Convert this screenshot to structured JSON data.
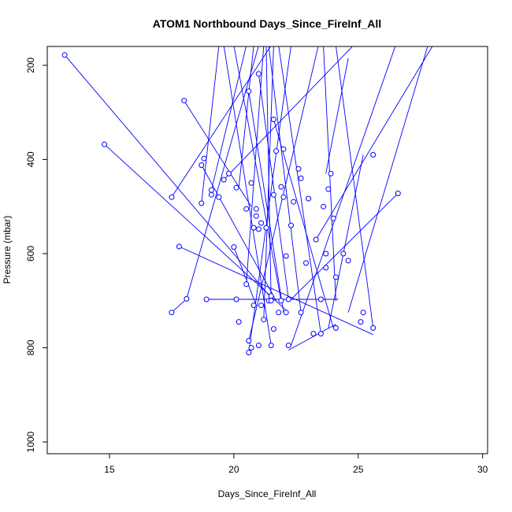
{
  "chart_data": {
    "type": "line",
    "title": "ATOM1 Northbound Days_Since_FireInf_All",
    "xlabel": "Days_Since_FireInf_All",
    "ylabel": "Pressure (mbar)",
    "xlim": [
      12.5,
      30.2
    ],
    "ylim": [
      1025,
      160
    ],
    "y_reversed": true,
    "x_ticks": [
      15,
      20,
      25,
      30
    ],
    "y_ticks": [
      200,
      400,
      600,
      800,
      1000
    ],
    "x_tick_labels": [
      "15",
      "20",
      "25",
      "30"
    ],
    "y_tick_labels": [
      "200",
      "400",
      "600",
      "800",
      "1000"
    ],
    "grid": false,
    "legend": "none",
    "colors": {
      "series": "#0000ff",
      "axes": "#000000",
      "background": "#ffffff"
    },
    "series": [
      {
        "x": [
          13.2,
          21.6
        ],
        "y": [
          178,
          700
        ]
      },
      {
        "x": [
          14.8,
          22.2
        ],
        "y": [
          368,
          725
        ]
      },
      {
        "x": [
          17.5,
          21.5
        ],
        "y": [
          480,
          158
        ]
      },
      {
        "x": [
          17.5,
          18.1,
          21.0
        ],
        "y": [
          725,
          696,
          158
        ]
      },
      {
        "x": [
          17.8,
          25.6
        ],
        "y": [
          585,
          772
        ]
      },
      {
        "x": [
          18.0,
          20.7
        ],
        "y": [
          275,
          500
        ]
      },
      {
        "x": [
          18.7,
          21.7
        ],
        "y": [
          412,
          700
        ]
      },
      {
        "x": [
          18.7,
          19.4
        ],
        "y": [
          493,
          158
        ]
      },
      {
        "x": [
          18.9,
          24.2
        ],
        "y": [
          697,
          697
        ]
      },
      {
        "x": [
          19.1,
          20.5
        ],
        "y": [
          465,
          158
        ]
      },
      {
        "x": [
          19.6,
          24.8
        ],
        "y": [
          443,
          158
        ]
      },
      {
        "x": [
          20.0,
          20.9
        ],
        "y": [
          586,
          710
        ]
      },
      {
        "x": [
          20.1,
          20.6
        ],
        "y": [
          697,
          697
        ]
      },
      {
        "x": [
          20.2,
          20.8
        ],
        "y": [
          460,
          158
        ]
      },
      {
        "x": [
          20.6,
          23.4
        ],
        "y": [
          785,
          158
        ]
      },
      {
        "x": [
          20.6,
          22.3
        ],
        "y": [
          810,
          158
        ]
      },
      {
        "x": [
          20.6,
          22.0
        ],
        "y": [
          255,
          725
        ]
      },
      {
        "x": [
          21.0,
          22.2
        ],
        "y": [
          218,
          697
        ]
      },
      {
        "x": [
          21.2,
          21.6
        ],
        "y": [
          740,
          158
        ]
      },
      {
        "x": [
          21.5,
          21.3
        ],
        "y": [
          700,
          158
        ]
      },
      {
        "x": [
          21.9,
          20.0
        ],
        "y": [
          700,
          158
        ]
      },
      {
        "x": [
          21.6,
          24.0
        ],
        "y": [
          315,
          758
        ]
      },
      {
        "x": [
          22.2,
          24.1
        ],
        "y": [
          805,
          750
        ]
      },
      {
        "x": [
          22.7,
          21.4
        ],
        "y": [
          725,
          158
        ]
      },
      {
        "x": [
          23.5,
          21.8
        ],
        "y": [
          770,
          158
        ]
      },
      {
        "x": [
          23.7,
          24.6
        ],
        "y": [
          430,
          185
        ]
      },
      {
        "x": [
          24.1,
          23.6
        ],
        "y": [
          700,
          158
        ]
      },
      {
        "x": [
          25.2,
          23.8
        ],
        "y": [
          390,
          758
        ]
      },
      {
        "x": [
          25.6,
          24.1
        ],
        "y": [
          758,
          158
        ]
      },
      {
        "x": [
          26.6,
          22.3
        ],
        "y": [
          472,
          697
        ]
      },
      {
        "x": [
          24.6,
          27.8
        ],
        "y": [
          725,
          158
        ]
      },
      {
        "x": [
          23.3,
          28.0
        ],
        "y": [
          570,
          158
        ]
      },
      {
        "x": [
          22.3,
          26.5
        ],
        "y": [
          795,
          158
        ]
      },
      {
        "x": [
          21.5,
          19.6
        ],
        "y": [
          795,
          158
        ]
      },
      {
        "x": [
          20.5,
          21.2
        ],
        "y": [
          665,
          158
        ]
      }
    ],
    "points": {
      "x": [
        13.2,
        14.8,
        17.5,
        17.5,
        17.8,
        18.0,
        18.1,
        18.7,
        18.7,
        18.8,
        18.9,
        19.1,
        19.1,
        19.4,
        19.6,
        19.8,
        20.0,
        20.1,
        20.1,
        20.2,
        20.5,
        20.5,
        20.6,
        20.6,
        20.6,
        20.7,
        20.7,
        20.8,
        20.8,
        20.9,
        20.9,
        21.0,
        21.0,
        21.0,
        21.1,
        21.1,
        21.2,
        21.3,
        21.4,
        21.5,
        21.5,
        21.5,
        21.6,
        21.6,
        21.6,
        21.7,
        21.8,
        21.9,
        21.9,
        22.0,
        22.0,
        22.1,
        22.1,
        22.2,
        22.2,
        22.3,
        22.4,
        22.6,
        22.7,
        22.7,
        22.9,
        23.0,
        23.2,
        23.3,
        23.5,
        23.5,
        23.6,
        23.7,
        23.7,
        23.8,
        23.9,
        24.0,
        24.1,
        24.1,
        24.4,
        24.6,
        25.1,
        25.2,
        25.6,
        25.6,
        26.6
      ],
      "y": [
        178,
        368,
        480,
        725,
        585,
        275,
        696,
        412,
        493,
        398,
        697,
        465,
        475,
        480,
        443,
        430,
        586,
        697,
        460,
        745,
        665,
        505,
        785,
        810,
        255,
        800,
        450,
        545,
        710,
        505,
        520,
        218,
        548,
        795,
        710,
        535,
        740,
        545,
        700,
        795,
        700,
        690,
        315,
        475,
        760,
        382,
        725,
        458,
        700,
        480,
        378,
        725,
        605,
        795,
        697,
        540,
        490,
        420,
        725,
        440,
        620,
        483,
        770,
        570,
        697,
        770,
        500,
        600,
        630,
        463,
        430,
        525,
        758,
        650,
        600,
        615,
        745,
        725,
        390,
        758,
        472
      ]
    }
  }
}
